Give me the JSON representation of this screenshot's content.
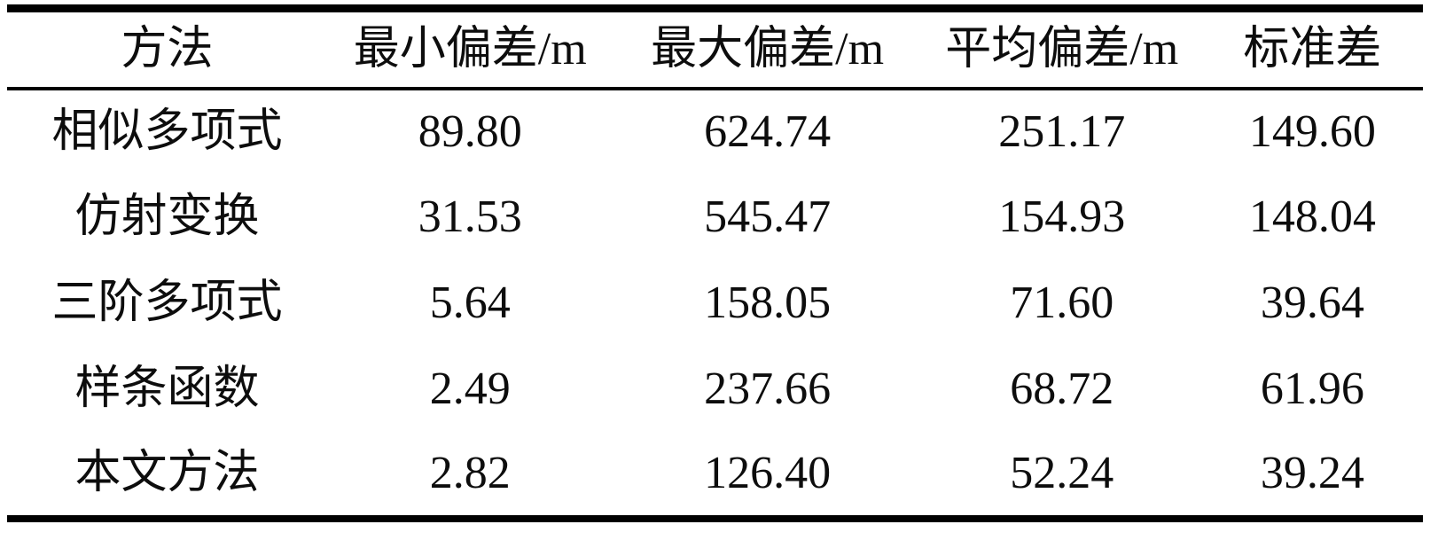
{
  "table": {
    "columns": [
      {
        "label": "方法"
      },
      {
        "label": "最小偏差/m"
      },
      {
        "label": "最大偏差/m"
      },
      {
        "label": "平均偏差/m"
      },
      {
        "label": "标准差"
      }
    ],
    "rows": [
      {
        "method": "相似多项式",
        "values": [
          "89.80",
          "624.74",
          "251.17",
          "149.60"
        ]
      },
      {
        "method": "仿射变换",
        "values": [
          "31.53",
          "545.47",
          "154.93",
          "148.04"
        ]
      },
      {
        "method": "三阶多项式",
        "values": [
          "5.64",
          "158.05",
          "71.60",
          "39.64"
        ]
      },
      {
        "method": "样条函数",
        "values": [
          "2.49",
          "237.66",
          "68.72",
          "61.96"
        ]
      },
      {
        "method": "本文方法",
        "values": [
          "2.82",
          "126.40",
          "52.24",
          "39.24"
        ]
      }
    ]
  },
  "colors": {
    "rule": "#000000",
    "text": "#0d0d0d",
    "background": "#ffffff"
  },
  "chart_data": {
    "type": "table",
    "columns": [
      "方法",
      "最小偏差/m",
      "最大偏差/m",
      "平均偏差/m",
      "标准差"
    ],
    "rows": [
      [
        "相似多项式",
        89.8,
        624.74,
        251.17,
        149.6
      ],
      [
        "仿射变换",
        31.53,
        545.47,
        154.93,
        148.04
      ],
      [
        "三阶多项式",
        5.64,
        158.05,
        71.6,
        39.64
      ],
      [
        "样条函数",
        2.49,
        237.66,
        68.72,
        61.96
      ],
      [
        "本文方法",
        2.82,
        126.4,
        52.24,
        39.24
      ]
    ]
  }
}
